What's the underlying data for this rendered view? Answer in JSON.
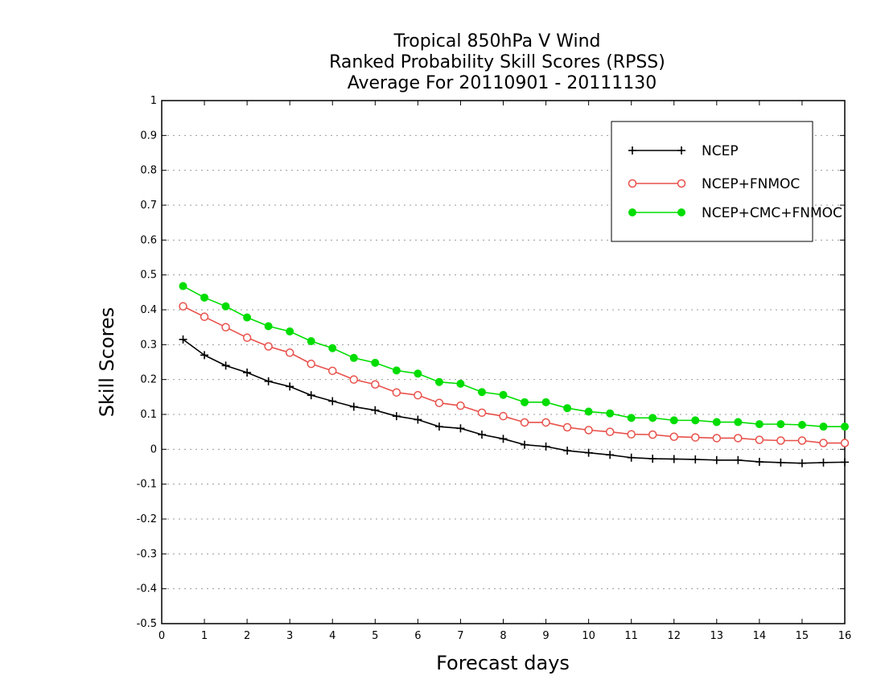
{
  "chart_data": {
    "type": "line",
    "title": [
      "Tropical 850hPa V Wind",
      "Ranked Probability Skill Scores (RPSS)",
      "Average For 20110901 - 20111130"
    ],
    "xlabel": "Forecast days",
    "ylabel": "Skill Scores",
    "xlim": [
      0,
      16
    ],
    "ylim": [
      -0.5,
      1
    ],
    "x_ticks": [
      "0",
      "1",
      "2",
      "3",
      "4",
      "5",
      "6",
      "7",
      "8",
      "9",
      "10",
      "11",
      "12",
      "13",
      "14",
      "15",
      "16"
    ],
    "y_ticks": [
      "-0.5",
      "-0.4",
      "-0.3",
      "-0.2",
      "-0.1",
      "0",
      "0.1",
      "0.2",
      "0.3",
      "0.4",
      "0.5",
      "0.6",
      "0.7",
      "0.8",
      "0.9",
      "1"
    ],
    "grid": "horizontal dotted",
    "legend_position": "top-right",
    "x": [
      0.5,
      1,
      1.5,
      2,
      2.5,
      3,
      3.5,
      4,
      4.5,
      5,
      5.5,
      6,
      6.5,
      7,
      7.5,
      8,
      8.5,
      9,
      9.5,
      10,
      10.5,
      11,
      11.5,
      12,
      12.5,
      13,
      13.5,
      14,
      14.5,
      15,
      15.5,
      16
    ],
    "series": [
      {
        "name": "NCEP",
        "color": "#000000",
        "marker": "plus",
        "values": [
          0.315,
          0.27,
          0.24,
          0.22,
          0.195,
          0.18,
          0.155,
          0.138,
          0.122,
          0.112,
          0.095,
          0.085,
          0.065,
          0.06,
          0.042,
          0.03,
          0.013,
          0.008,
          -0.004,
          -0.01,
          -0.016,
          -0.024,
          -0.027,
          -0.028,
          -0.029,
          -0.031,
          -0.031,
          -0.036,
          -0.038,
          -0.04,
          -0.038,
          -0.037
        ]
      },
      {
        "name": "NCEP+FNMOC",
        "color": "#e8504a",
        "marker": "open-circle",
        "values": [
          0.41,
          0.38,
          0.35,
          0.32,
          0.295,
          0.277,
          0.245,
          0.225,
          0.2,
          0.186,
          0.163,
          0.155,
          0.133,
          0.125,
          0.105,
          0.095,
          0.077,
          0.077,
          0.063,
          0.055,
          0.05,
          0.043,
          0.042,
          0.036,
          0.034,
          0.032,
          0.032,
          0.027,
          0.025,
          0.025,
          0.018,
          0.018
        ]
      },
      {
        "name": "NCEP+CMC+FNMOC",
        "color": "#00dd00",
        "marker": "filled-circle",
        "values": [
          0.468,
          0.435,
          0.41,
          0.378,
          0.353,
          0.338,
          0.31,
          0.29,
          0.262,
          0.248,
          0.226,
          0.217,
          0.193,
          0.188,
          0.164,
          0.156,
          0.135,
          0.135,
          0.118,
          0.108,
          0.103,
          0.09,
          0.09,
          0.083,
          0.083,
          0.078,
          0.078,
          0.072,
          0.072,
          0.07,
          0.065,
          0.065
        ]
      }
    ]
  }
}
